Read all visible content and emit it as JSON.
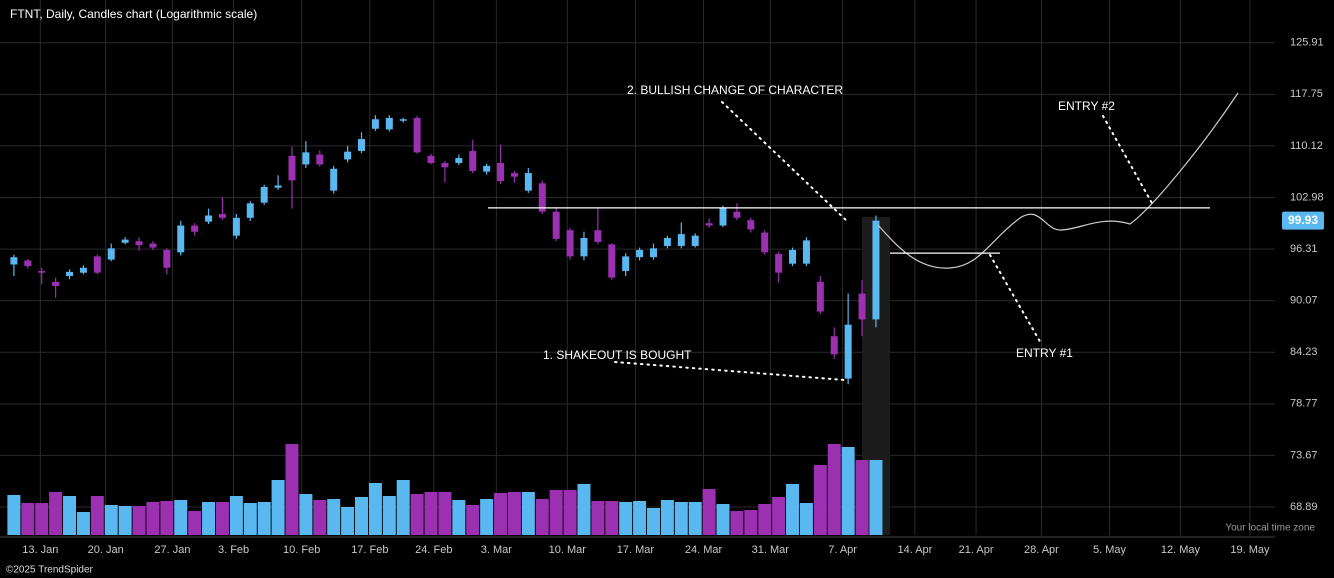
{
  "chart_data": {
    "type": "candlestick",
    "title": "FTNT, Daily, Candles chart (Logarithmic scale)",
    "footer": "©2025 TrendSpider",
    "timezone_label": "Your local time zone",
    "log_scale": true,
    "grid": true,
    "up_color": "#5ab8f0",
    "down_color": "#9b30b0",
    "annotations": [
      "2. BULLISH CHANGE OF CHARACTER",
      "ENTRY #2",
      "1. SHAKEOUT IS BOUGHT",
      "ENTRY #1"
    ],
    "last_price": 99.93,
    "levels": [
      101.6,
      95.8
    ],
    "categories": [
      null,
      null,
      null,
      null,
      null,
      null,
      null,
      null,
      null,
      null,
      null,
      null,
      null,
      null,
      null,
      null,
      null,
      null,
      null,
      null,
      null,
      null,
      null,
      null,
      null,
      null,
      null,
      null,
      null,
      null,
      null,
      null,
      null,
      null,
      null,
      null,
      null,
      null,
      null,
      null,
      null,
      null,
      null,
      null,
      null,
      null,
      null,
      null,
      null,
      null,
      null,
      null,
      null,
      null,
      null,
      null,
      null,
      null,
      null,
      null,
      null,
      null,
      null
    ],
    "open": [
      94.4,
      94.9,
      93.6,
      92.3,
      93.0,
      93.4,
      95.4,
      95.0,
      97.1,
      97.3,
      97.0,
      96.2,
      95.9,
      99.3,
      99.8,
      100.8,
      98.0,
      100.3,
      102.3,
      104.3,
      108.7,
      107.5,
      108.9,
      103.9,
      108.2,
      109.4,
      112.6,
      112.5,
      113.8,
      114.2,
      108.7,
      107.7,
      107.7,
      109.4,
      106.5,
      107.7,
      106.3,
      103.9,
      104.9,
      101.1,
      98.7,
      95.4,
      98.7,
      96.9,
      93.6,
      95.3,
      95.3,
      96.7,
      96.7,
      96.7,
      99.6,
      99.3,
      101.1,
      100.0,
      98.4,
      95.7,
      94.5,
      94.5,
      92.3,
      86.0,
      81.4,
      90.9,
      87.9
    ],
    "high": [
      95.6,
      95.1,
      94.0,
      92.8,
      93.8,
      94.3,
      95.6,
      97.0,
      97.8,
      97.8,
      97.3,
      96.4,
      99.9,
      99.6,
      101.5,
      103.0,
      100.8,
      102.5,
      104.7,
      106.0,
      110.0,
      110.8,
      109.5,
      107.3,
      110.1,
      112.1,
      114.6,
      114.6,
      114.2,
      114.5,
      109.0,
      108.0,
      108.9,
      111.0,
      107.6,
      110.3,
      106.6,
      107.0,
      105.3,
      101.6,
      99.0,
      98.5,
      101.6,
      97.0,
      95.8,
      96.5,
      97.0,
      98.0,
      99.7,
      98.3,
      100.2,
      101.9,
      102.2,
      100.3,
      98.7,
      96.0,
      96.5,
      97.8,
      93.0,
      87.0,
      90.9,
      92.5,
      100.6
    ],
    "low": [
      93.0,
      93.9,
      92.0,
      90.4,
      92.6,
      93.2,
      93.2,
      94.8,
      96.9,
      96.1,
      96.2,
      93.2,
      95.5,
      98.0,
      99.5,
      100.0,
      97.6,
      99.9,
      102.0,
      104.0,
      101.5,
      107.0,
      107.2,
      103.5,
      107.8,
      109.1,
      112.3,
      112.2,
      113.5,
      109.0,
      107.5,
      105.0,
      107.4,
      106.3,
      106.1,
      104.8,
      105.0,
      103.6,
      100.8,
      97.3,
      95.0,
      94.9,
      96.9,
      92.5,
      93.0,
      94.9,
      95.0,
      96.4,
      96.4,
      96.5,
      99.0,
      99.1,
      100.0,
      98.4,
      95.6,
      92.2,
      94.2,
      94.2,
      88.5,
      83.5,
      80.8,
      86.0,
      87.0
    ],
    "close": [
      95.3,
      94.2,
      93.4,
      91.8,
      93.5,
      94.0,
      93.4,
      96.4,
      97.5,
      96.8,
      96.5,
      94.0,
      99.3,
      98.5,
      100.6,
      100.3,
      100.3,
      102.2,
      104.4,
      104.6,
      105.3,
      109.2,
      107.5,
      106.9,
      109.3,
      111.1,
      114.0,
      114.2,
      114.0,
      109.2,
      107.7,
      107.1,
      108.4,
      106.6,
      107.3,
      105.2,
      105.8,
      106.3,
      101.1,
      97.6,
      95.4,
      97.7,
      97.2,
      92.8,
      95.4,
      96.2,
      96.4,
      97.7,
      98.2,
      98.0,
      99.3,
      101.6,
      100.3,
      98.8,
      95.9,
      93.4,
      96.2,
      97.4,
      88.8,
      84.0,
      87.3,
      87.9,
      99.93
    ],
    "volume": [
      4.0,
      3.2,
      3.2,
      4.3,
      3.9,
      2.3,
      3.9,
      3.0,
      2.9,
      2.9,
      3.3,
      3.4,
      3.5,
      2.4,
      3.3,
      3.3,
      3.9,
      3.2,
      3.3,
      5.5,
      9.1,
      4.1,
      3.5,
      3.6,
      2.8,
      3.8,
      5.2,
      3.9,
      5.5,
      4.1,
      4.3,
      4.3,
      3.5,
      3.0,
      3.6,
      4.2,
      4.3,
      4.3,
      3.6,
      4.5,
      4.5,
      5.1,
      3.4,
      3.4,
      3.3,
      3.4,
      2.7,
      3.5,
      3.3,
      3.3,
      4.6,
      3.1,
      2.4,
      2.5,
      3.1,
      3.8,
      5.1,
      3.2,
      7.0,
      9.1,
      8.8,
      7.5,
      7.5
    ],
    "volume_lim": [
      0,
      20
    ],
    "ylim": [
      66.43,
      133.1
    ],
    "yticks": [
      68.89,
      73.67,
      78.77,
      84.23,
      90.07,
      96.31,
      102.98,
      110.12,
      117.75,
      125.91
    ],
    "xlim": [
      -1,
      90.7
    ],
    "xticks": [
      {
        "value": 1.9,
        "label": "13. Jan"
      },
      {
        "value": 6.6,
        "label": "20. Jan"
      },
      {
        "value": 11.4,
        "label": "27. Jan"
      },
      {
        "value": 15.8,
        "label": "3. Feb"
      },
      {
        "value": 20.7,
        "label": "10. Feb"
      },
      {
        "value": 25.6,
        "label": "17. Feb"
      },
      {
        "value": 30.2,
        "label": "24. Feb"
      },
      {
        "value": 34.7,
        "label": "3. Mar"
      },
      {
        "value": 39.8,
        "label": "10. Mar"
      },
      {
        "value": 44.7,
        "label": "17. Mar"
      },
      {
        "value": 49.6,
        "label": "24. Mar"
      },
      {
        "value": 54.4,
        "label": "31. Mar"
      },
      {
        "value": 59.6,
        "label": "7. Apr"
      },
      {
        "value": 64.8,
        "label": "14. Apr"
      },
      {
        "value": 69.2,
        "label": "21. Apr"
      },
      {
        "value": 73.9,
        "label": "28. Apr"
      },
      {
        "value": 78.8,
        "label": "5. May"
      },
      {
        "value": 83.9,
        "label": "12. May"
      },
      {
        "value": 88.9,
        "label": "19. May"
      }
    ]
  }
}
